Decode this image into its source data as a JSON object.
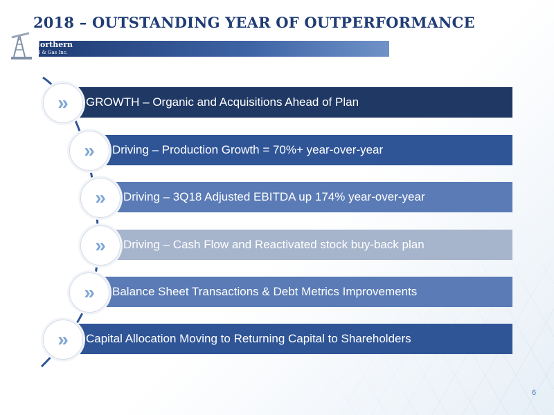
{
  "slide": {
    "title": "2018 – OUTSTANDING YEAR OF OUTPERFORMANCE",
    "page_number": "6"
  },
  "logo": {
    "line1": "Northern",
    "line2": "Oil & Gas Inc."
  },
  "items": [
    {
      "label": "GROWTH – Organic and Acquisitions Ahead of Plan",
      "color": "#1f3864",
      "icon": "chevron-right-double-icon"
    },
    {
      "label": "Driving – Production Growth = 70%+ year-over-year",
      "color": "#2f5597",
      "icon": "chevron-right-double-icon"
    },
    {
      "label": "Driving – 3Q18 Adjusted EBITDA up 174% year-over-year",
      "color": "#5a7bb5",
      "icon": "chevron-right-double-icon"
    },
    {
      "label": "Driving – Cash Flow and Reactivated stock buy-back plan",
      "color": "#a6b4cc",
      "icon": "chevron-right-double-icon"
    },
    {
      "label": "Balance Sheet Transactions & Debt Metrics Improvements",
      "color": "#5a7bb5",
      "icon": "chevron-right-double-icon"
    },
    {
      "label": "Capital Allocation Moving to Returning Capital to Shareholders",
      "color": "#2f5597",
      "icon": "chevron-right-double-icon"
    }
  ],
  "icons": {
    "chevron": "»"
  }
}
